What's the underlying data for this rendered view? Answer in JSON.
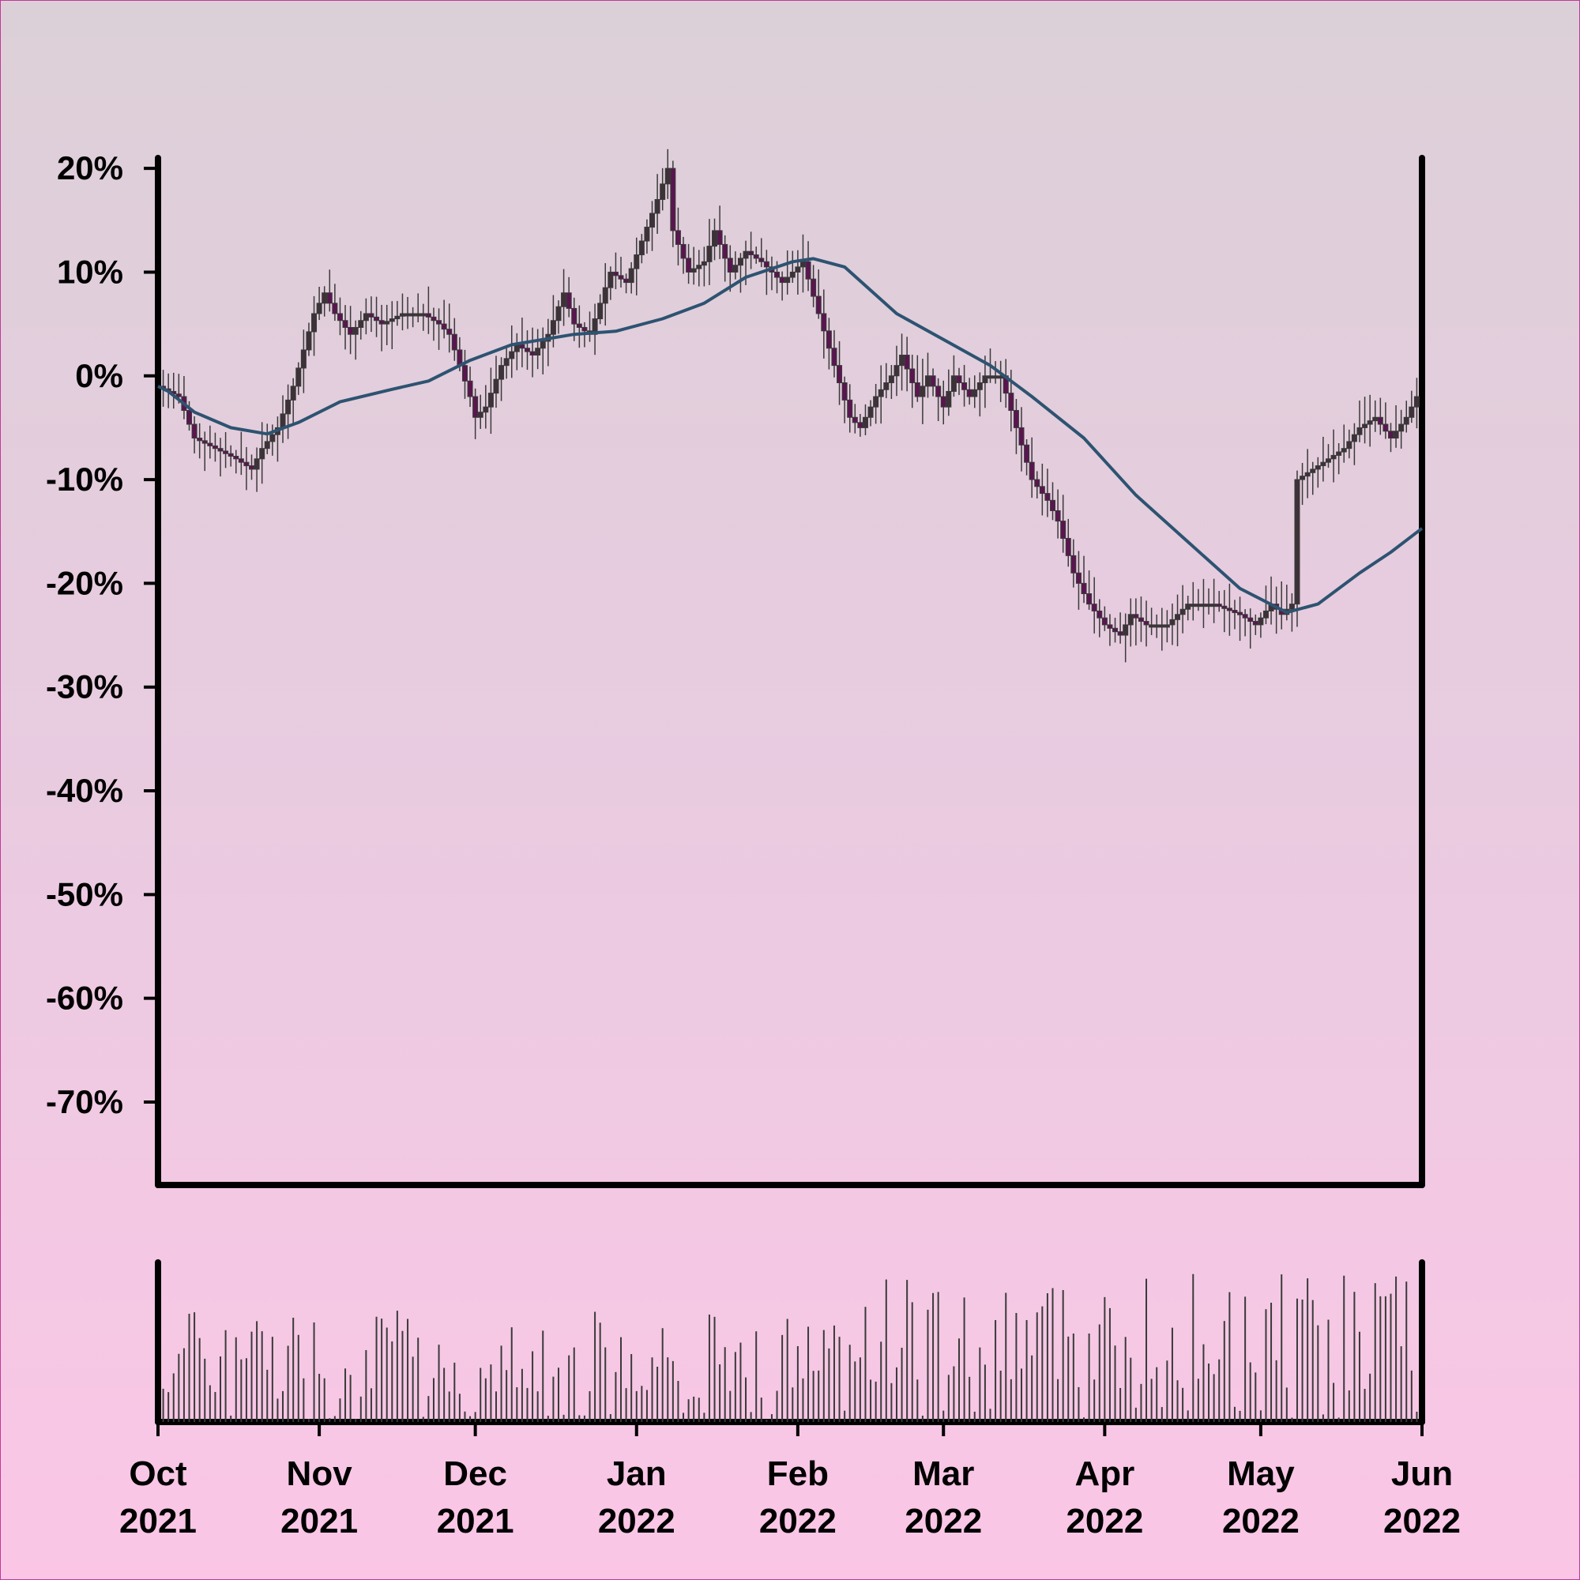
{
  "chart_data": {
    "type": "candlestick",
    "y_ticks": [
      "20%",
      "10%",
      "0%",
      "-10%",
      "-20%",
      "-30%",
      "-40%",
      "-50%",
      "-60%",
      "-70%"
    ],
    "ylim": [
      -78,
      21
    ],
    "x_ticks": [
      {
        "date": "2021-10-01",
        "month": "Oct",
        "year": "2021"
      },
      {
        "date": "2021-11-01",
        "month": "Nov",
        "year": "2021"
      },
      {
        "date": "2021-12-01",
        "month": "Dec",
        "year": "2021"
      },
      {
        "date": "2022-01-01",
        "month": "Jan",
        "year": "2022"
      },
      {
        "date": "2022-02-01",
        "month": "Feb",
        "year": "2022"
      },
      {
        "date": "2022-03-01",
        "month": "Mar",
        "year": "2022"
      },
      {
        "date": "2022-04-01",
        "month": "Apr",
        "year": "2022"
      },
      {
        "date": "2022-05-01",
        "month": "May",
        "year": "2022"
      },
      {
        "date": "2022-06-01",
        "month": "Jun",
        "year": "2022"
      }
    ],
    "xlim": [
      "2021-10-01",
      "2022-06-01"
    ],
    "price_series": [
      [
        "2021-10-01",
        -1
      ],
      [
        "2021-10-05",
        -2
      ],
      [
        "2021-10-08",
        -6
      ],
      [
        "2021-10-12",
        -7
      ],
      [
        "2021-10-16",
        -8
      ],
      [
        "2021-10-19",
        -9
      ],
      [
        "2021-10-21",
        -7
      ],
      [
        "2021-10-24",
        -5
      ],
      [
        "2021-10-27",
        -1
      ],
      [
        "2021-10-31",
        6
      ],
      [
        "2021-11-02",
        8
      ],
      [
        "2021-11-04",
        6
      ],
      [
        "2021-11-07",
        4
      ],
      [
        "2021-11-10",
        6
      ],
      [
        "2021-11-13",
        5
      ],
      [
        "2021-11-17",
        6
      ],
      [
        "2021-11-21",
        6
      ],
      [
        "2021-11-24",
        5
      ],
      [
        "2021-11-26",
        4
      ],
      [
        "2021-11-28",
        1
      ],
      [
        "2021-11-30",
        -2
      ],
      [
        "2021-12-01",
        -4
      ],
      [
        "2021-12-03",
        -3
      ],
      [
        "2021-12-06",
        1
      ],
      [
        "2021-12-09",
        3
      ],
      [
        "2021-12-12",
        2
      ],
      [
        "2021-12-15",
        4
      ],
      [
        "2021-12-18",
        8
      ],
      [
        "2021-12-20",
        5
      ],
      [
        "2021-12-23",
        4
      ],
      [
        "2021-12-27",
        10
      ],
      [
        "2021-12-30",
        9
      ],
      [
        "2022-01-02",
        13
      ],
      [
        "2022-01-05",
        17
      ],
      [
        "2022-01-07",
        20
      ],
      [
        "2022-01-08",
        14
      ],
      [
        "2022-01-11",
        10
      ],
      [
        "2022-01-14",
        11
      ],
      [
        "2022-01-16",
        14
      ],
      [
        "2022-01-19",
        10
      ],
      [
        "2022-01-22",
        12
      ],
      [
        "2022-01-25",
        11
      ],
      [
        "2022-01-29",
        9
      ],
      [
        "2022-02-02",
        11
      ],
      [
        "2022-02-05",
        6
      ],
      [
        "2022-02-08",
        1
      ],
      [
        "2022-02-11",
        -4
      ],
      [
        "2022-02-13",
        -5
      ],
      [
        "2022-02-16",
        -2
      ],
      [
        "2022-02-19",
        0
      ],
      [
        "2022-02-21",
        2
      ],
      [
        "2022-02-24",
        -2
      ],
      [
        "2022-02-26",
        0
      ],
      [
        "2022-03-01",
        -3
      ],
      [
        "2022-03-03",
        0
      ],
      [
        "2022-03-06",
        -2
      ],
      [
        "2022-03-09",
        0
      ],
      [
        "2022-03-12",
        0
      ],
      [
        "2022-03-15",
        -5
      ],
      [
        "2022-03-18",
        -10
      ],
      [
        "2022-03-21",
        -12
      ],
      [
        "2022-03-23",
        -14
      ],
      [
        "2022-03-26",
        -19
      ],
      [
        "2022-03-29",
        -22
      ],
      [
        "2022-04-01",
        -24
      ],
      [
        "2022-04-04",
        -25
      ],
      [
        "2022-04-06",
        -23
      ],
      [
        "2022-04-09",
        -24
      ],
      [
        "2022-04-13",
        -24
      ],
      [
        "2022-04-17",
        -22
      ],
      [
        "2022-04-22",
        -22
      ],
      [
        "2022-04-27",
        -23
      ],
      [
        "2022-04-30",
        -24
      ],
      [
        "2022-05-03",
        -22
      ],
      [
        "2022-05-05",
        -23
      ],
      [
        "2022-05-07",
        -22
      ],
      [
        "2022-05-08",
        -10
      ],
      [
        "2022-05-11",
        -9
      ],
      [
        "2022-05-14",
        -8
      ],
      [
        "2022-05-17",
        -7
      ],
      [
        "2022-05-20",
        -5
      ],
      [
        "2022-05-23",
        -4
      ],
      [
        "2022-05-26",
        -6
      ],
      [
        "2022-05-29",
        -4
      ],
      [
        "2022-05-31",
        -2
      ]
    ],
    "moving_average": [
      [
        "2021-10-01",
        -1
      ],
      [
        "2021-10-03",
        -1.5
      ],
      [
        "2021-10-08",
        -3.5
      ],
      [
        "2021-10-15",
        -5
      ],
      [
        "2021-10-22",
        -5.6
      ],
      [
        "2021-10-28",
        -4.5
      ],
      [
        "2021-11-05",
        -2.5
      ],
      [
        "2021-11-15",
        -1.3
      ],
      [
        "2021-11-22",
        -0.5
      ],
      [
        "2021-11-30",
        1.5
      ],
      [
        "2021-12-08",
        3
      ],
      [
        "2021-12-20",
        4
      ],
      [
        "2021-12-28",
        4.3
      ],
      [
        "2022-01-06",
        5.5
      ],
      [
        "2022-01-14",
        7
      ],
      [
        "2022-01-22",
        9.5
      ],
      [
        "2022-01-31",
        11
      ],
      [
        "2022-02-04",
        11.3
      ],
      [
        "2022-02-10",
        10.5
      ],
      [
        "2022-02-20",
        6
      ],
      [
        "2022-03-01",
        3.5
      ],
      [
        "2022-03-10",
        1
      ],
      [
        "2022-03-18",
        -2
      ],
      [
        "2022-03-28",
        -6
      ],
      [
        "2022-04-07",
        -11.5
      ],
      [
        "2022-04-17",
        -16
      ],
      [
        "2022-04-27",
        -20.5
      ],
      [
        "2022-05-06",
        -22.8
      ],
      [
        "2022-05-12",
        -22
      ],
      [
        "2022-05-20",
        -19
      ],
      [
        "2022-05-26",
        -17
      ],
      [
        "2022-06-01",
        -14.7
      ]
    ],
    "colors": {
      "candle_body": "#5a1550",
      "wick": "#3a3a3a",
      "moving_average": "#2d5371",
      "volume_bar": "#3a3a3a",
      "axis": "#000000"
    },
    "grid": false
  }
}
